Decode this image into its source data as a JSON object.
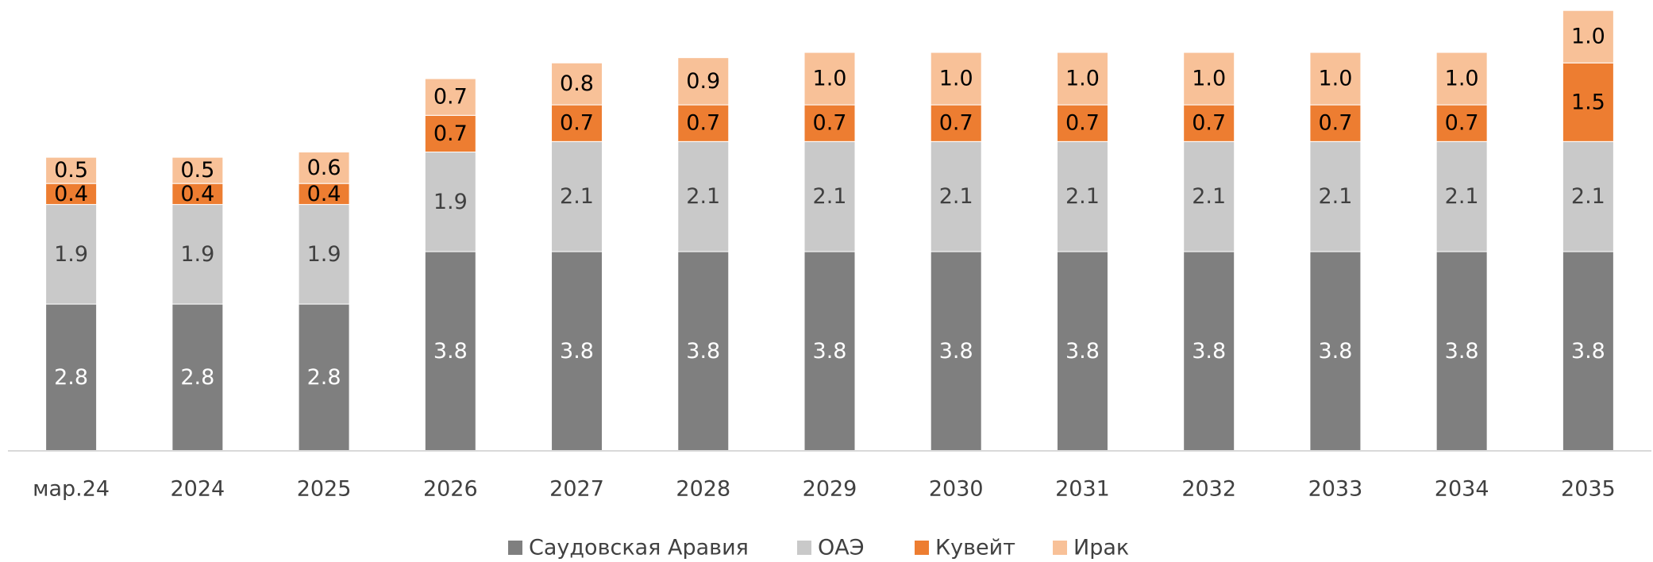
{
  "chart_data": {
    "type": "stacked_bar",
    "categories": [
      "мар.24",
      "2024",
      "2025",
      "2026",
      "2027",
      "2028",
      "2029",
      "2030",
      "2031",
      "2032",
      "2033",
      "2034",
      "2035"
    ],
    "series": [
      {
        "name": "Саудовская Аравия",
        "color": "#7f7f7f",
        "values": [
          2.8,
          2.8,
          2.8,
          3.8,
          3.8,
          3.8,
          3.8,
          3.8,
          3.8,
          3.8,
          3.8,
          3.8,
          3.8
        ]
      },
      {
        "name": "ОАЭ",
        "color": "#c9c9c9",
        "values": [
          1.9,
          1.9,
          1.9,
          1.9,
          2.1,
          2.1,
          2.1,
          2.1,
          2.1,
          2.1,
          2.1,
          2.1,
          2.1
        ]
      },
      {
        "name": "Кувейт",
        "color": "#ed7d31",
        "values": [
          0.4,
          0.4,
          0.4,
          0.7,
          0.7,
          0.7,
          0.7,
          0.7,
          0.7,
          0.7,
          0.7,
          0.7,
          1.5
        ]
      },
      {
        "name": "Ирак",
        "color": "#f8c198",
        "values": [
          0.5,
          0.5,
          0.6,
          0.7,
          0.8,
          0.9,
          1,
          1,
          1,
          1,
          1,
          1,
          1
        ],
        "value_labels": [
          "0.5",
          "0.5",
          "0.6",
          "0.7",
          "0.8",
          "0.9",
          "1.0",
          "1.0",
          "1.0",
          "1.0",
          "1.0",
          "1.0",
          "1.0"
        ]
      }
    ],
    "ylim": [
      0,
      8.6
    ],
    "legend": "bottom"
  }
}
